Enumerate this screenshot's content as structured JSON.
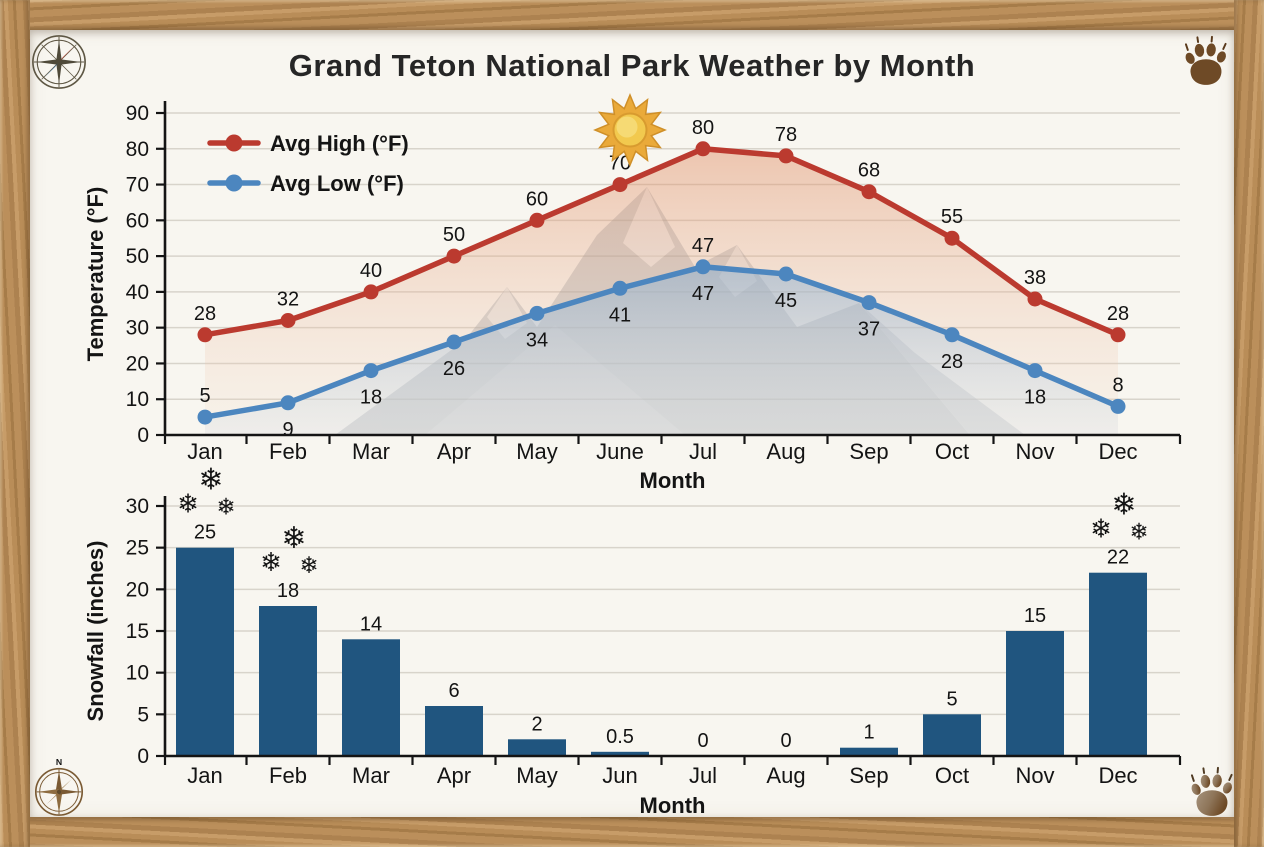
{
  "title": "Grand Teton National Park Weather by Month",
  "decorations": {
    "corner_icons": [
      "compass-rose-icon",
      "bear-paw-icon",
      "compass-rose-n-icon",
      "bear-paw-icon"
    ],
    "compass_north_label": "N",
    "sun": {
      "anchor_month": "June"
    },
    "snowflake_clusters": [
      "Jan",
      "Feb",
      "Dec"
    ],
    "snowflake_glyph": "❄",
    "mountain_watermark": true
  },
  "colors": {
    "avg_high_line": "#bb3a2f",
    "avg_low_line": "#4c86bf",
    "snow_bar": "#20557f",
    "snowflake": "#2d6da3",
    "grid_line": "#d8d4cb",
    "axis_line": "#141414",
    "text": "#141414",
    "parchment": "#f8f6f0",
    "wood_frame": "#b5895a",
    "sun_fill": "#f2c94e",
    "paw_brown": "#6e4a26",
    "compass_brown": "#7a5a33"
  },
  "chart_data": [
    {
      "type": "line",
      "title": "",
      "xlabel": "Month",
      "ylabel": "Temperature (°F)",
      "ylim": [
        0,
        90
      ],
      "yticks": [
        0,
        10,
        20,
        30,
        40,
        50,
        60,
        70,
        80,
        90
      ],
      "grid": true,
      "legend_position": "upper left",
      "categories": [
        "Jan",
        "Feb",
        "Mar",
        "Apr",
        "May",
        "June",
        "Jul",
        "Aug",
        "Sep",
        "Oct",
        "Nov",
        "Dec"
      ],
      "series": [
        {
          "name": "Avg High (°F)",
          "color": "#bb3a2f",
          "values": [
            28,
            32,
            40,
            50,
            60,
            70,
            80,
            78,
            68,
            55,
            38,
            28
          ],
          "label_pos": [
            "above",
            "above",
            "above",
            "above",
            "above",
            "above",
            "above",
            "above",
            "above",
            "above",
            "above",
            "above"
          ]
        },
        {
          "name": "Avg Low (°F)",
          "color": "#4c86bf",
          "values": [
            5,
            9,
            18,
            26,
            34,
            41,
            47,
            45,
            37,
            28,
            18,
            8
          ],
          "label_pos": [
            "above",
            "below",
            "below",
            "below",
            "below",
            "below",
            "both",
            "below",
            "below",
            "below",
            "below",
            "above"
          ]
        }
      ]
    },
    {
      "type": "bar",
      "title": "",
      "xlabel": "Month",
      "ylabel": "Snowfall (inches)",
      "ylim": [
        0,
        30
      ],
      "yticks": [
        0,
        5,
        10,
        15,
        20,
        25,
        30
      ],
      "grid": true,
      "categories": [
        "Jan",
        "Feb",
        "Mar",
        "Apr",
        "May",
        "Jun",
        "Jul",
        "Aug",
        "Sep",
        "Oct",
        "Nov",
        "Dec"
      ],
      "values": [
        25,
        18,
        14,
        6,
        2,
        0.5,
        0,
        0,
        1,
        5,
        15,
        22
      ],
      "bar_color": "#20557f"
    }
  ]
}
